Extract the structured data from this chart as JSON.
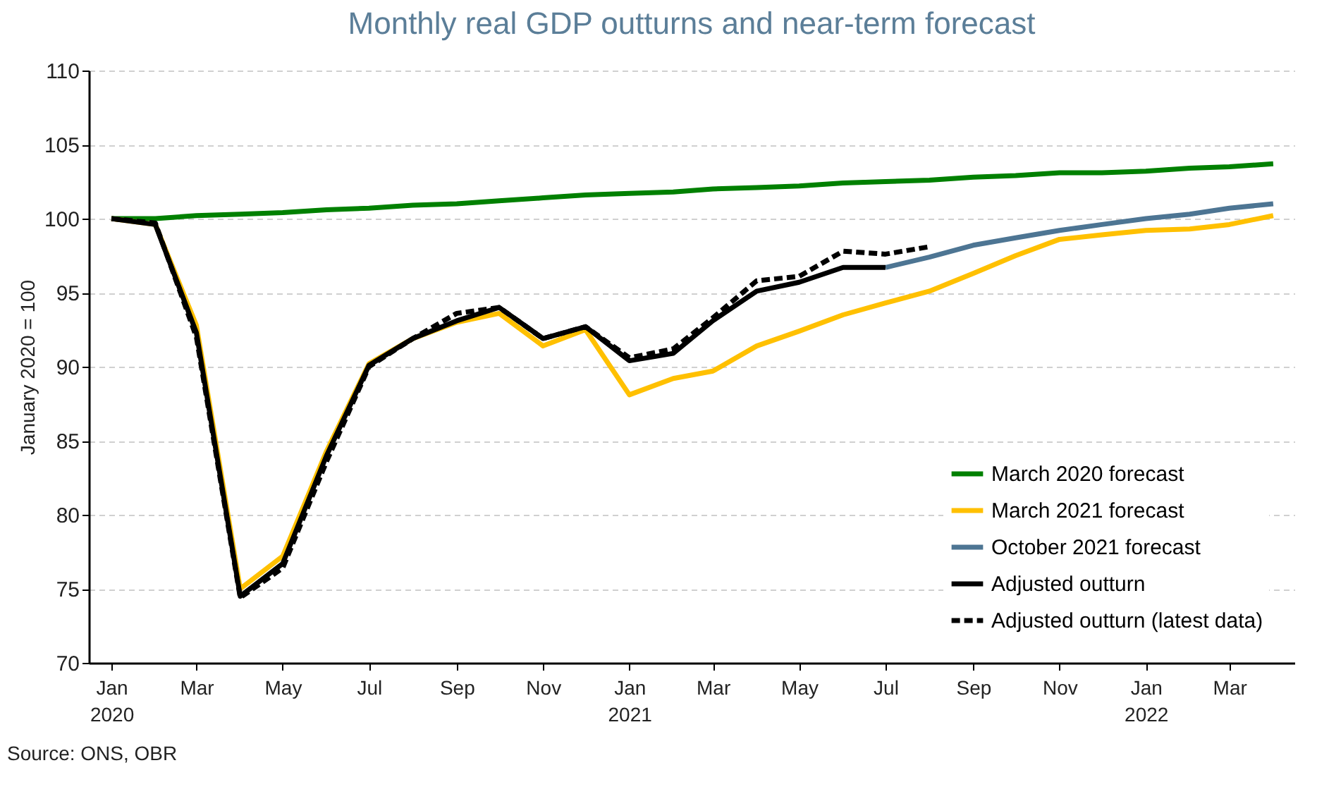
{
  "chart_data": {
    "type": "line",
    "title": "Monthly real GDP outturns and near-term forecast",
    "ylabel": "January 2020 = 100",
    "x": [
      "2020-01",
      "2020-02",
      "2020-03",
      "2020-04",
      "2020-05",
      "2020-06",
      "2020-07",
      "2020-08",
      "2020-09",
      "2020-10",
      "2020-11",
      "2020-12",
      "2021-01",
      "2021-02",
      "2021-03",
      "2021-04",
      "2021-05",
      "2021-06",
      "2021-07",
      "2021-08",
      "2021-09",
      "2021-10",
      "2021-11",
      "2021-12",
      "2022-01",
      "2022-02",
      "2022-03",
      "2022-04"
    ],
    "series": [
      {
        "name": "March 2020 forecast",
        "color": "#008000",
        "line_style": "solid",
        "values": [
          100.0,
          100.0,
          100.2,
          100.3,
          100.4,
          100.6,
          100.7,
          100.9,
          101.0,
          101.2,
          101.4,
          101.6,
          101.7,
          101.8,
          102.0,
          102.1,
          102.2,
          102.4,
          102.5,
          102.6,
          102.8,
          102.9,
          103.1,
          103.1,
          103.2,
          103.4,
          103.5,
          103.7
        ]
      },
      {
        "name": "March 2021 forecast",
        "color": "#ffc000",
        "line_style": "solid",
        "values": [
          100.0,
          99.6,
          92.8,
          75.0,
          77.2,
          84.3,
          90.2,
          91.9,
          93.0,
          93.6,
          91.4,
          92.5,
          88.1,
          89.2,
          89.7,
          91.4,
          92.4,
          93.5,
          94.3,
          95.1,
          96.3,
          97.5,
          98.6,
          98.9,
          99.2,
          99.3,
          99.6,
          100.2
        ]
      },
      {
        "name": "October 2021 forecast",
        "color": "#4d7593",
        "line_style": "solid",
        "values": [
          null,
          null,
          null,
          null,
          null,
          null,
          null,
          null,
          null,
          null,
          null,
          null,
          null,
          null,
          null,
          null,
          null,
          null,
          96.7,
          97.4,
          98.2,
          98.7,
          99.2,
          99.6,
          100.0,
          100.3,
          100.7,
          101.0
        ]
      },
      {
        "name": "Adjusted outturn",
        "color": "#000000",
        "line_style": "solid",
        "values": [
          100.0,
          99.6,
          92.3,
          74.5,
          76.7,
          84.0,
          90.1,
          91.9,
          93.1,
          94.0,
          91.9,
          92.7,
          90.4,
          90.9,
          93.1,
          95.1,
          95.7,
          96.7,
          96.7,
          null,
          null,
          null,
          null,
          null,
          null,
          null,
          null,
          null
        ]
      },
      {
        "name": "Adjusted outturn (latest data)",
        "color": "#000000",
        "line_style": "dashed",
        "values": [
          100.0,
          99.7,
          92.0,
          74.4,
          76.4,
          83.6,
          90.0,
          91.9,
          93.6,
          94.0,
          91.9,
          92.7,
          90.6,
          91.2,
          93.3,
          95.8,
          96.1,
          97.8,
          97.6,
          98.1,
          null,
          null,
          null,
          null,
          null,
          null,
          null,
          null
        ]
      }
    ],
    "xlim": [
      "2019-12-16",
      "2022-04-16"
    ],
    "xticks": [
      {
        "value": "2020-01",
        "label": "Jan\n2020"
      },
      {
        "value": "2020-03",
        "label": "Mar"
      },
      {
        "value": "2020-05",
        "label": "May"
      },
      {
        "value": "2020-07",
        "label": "Jul"
      },
      {
        "value": "2020-09",
        "label": "Sep"
      },
      {
        "value": "2020-11",
        "label": "Nov"
      },
      {
        "value": "2021-01",
        "label": "Jan\n2021"
      },
      {
        "value": "2021-03",
        "label": "Mar"
      },
      {
        "value": "2021-05",
        "label": "May"
      },
      {
        "value": "2021-07",
        "label": "Jul"
      },
      {
        "value": "2021-09",
        "label": "Sep"
      },
      {
        "value": "2021-11",
        "label": "Nov"
      },
      {
        "value": "2022-01",
        "label": "Jan\n2022"
      },
      {
        "value": "2022-03",
        "label": "Mar"
      }
    ],
    "ylim": [
      70,
      110
    ],
    "yticks": [
      70,
      75,
      80,
      85,
      90,
      95,
      100,
      105,
      110
    ],
    "grid": "y",
    "legend": "bottom right",
    "annotations": [
      "Source: ONS, OBR"
    ]
  }
}
